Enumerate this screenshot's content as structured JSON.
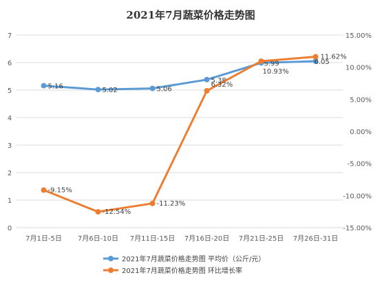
{
  "chart_data": {
    "type": "line",
    "title": "2021年7月蔬菜价格走势图",
    "categories": [
      "7月1日-5日",
      "7月6日-10日",
      "7月11日-15日",
      "7月16日-20日",
      "7月21日-25日",
      "7月26日-31日"
    ],
    "left_axis": {
      "min": 0,
      "max": 7,
      "step": 1,
      "ticks": [
        "0",
        "1",
        "2",
        "3",
        "4",
        "5",
        "6",
        "7"
      ]
    },
    "right_axis": {
      "min": -15,
      "max": 15,
      "step": 5,
      "ticks": [
        "-15.00%",
        "-10.00%",
        "-5.00%",
        "0.00%",
        "5.00%",
        "10.00%",
        "15.00%"
      ]
    },
    "grid": true,
    "legend_position": "bottom",
    "series": [
      {
        "name": "2021年7月蔬菜价格走势图 平均价（公斤/元）",
        "axis": "left",
        "color": "#5B9BD5",
        "values": [
          5.16,
          5.02,
          5.06,
          5.38,
          5.99,
          6.05
        ],
        "labels": [
          "5.16",
          "5.02",
          "5.06",
          "5.38",
          "5.99",
          "6.05"
        ]
      },
      {
        "name": "2021年7月蔬菜价格走势图 环比增长率",
        "axis": "right",
        "color": "#ED7D31",
        "values": [
          -9.15,
          -12.54,
          -11.23,
          6.32,
          10.93,
          11.62
        ],
        "labels": [
          "-9.15%",
          "-12.54%",
          "-11.23%",
          "6.32%",
          "10.93%",
          "11.62%"
        ]
      }
    ]
  }
}
